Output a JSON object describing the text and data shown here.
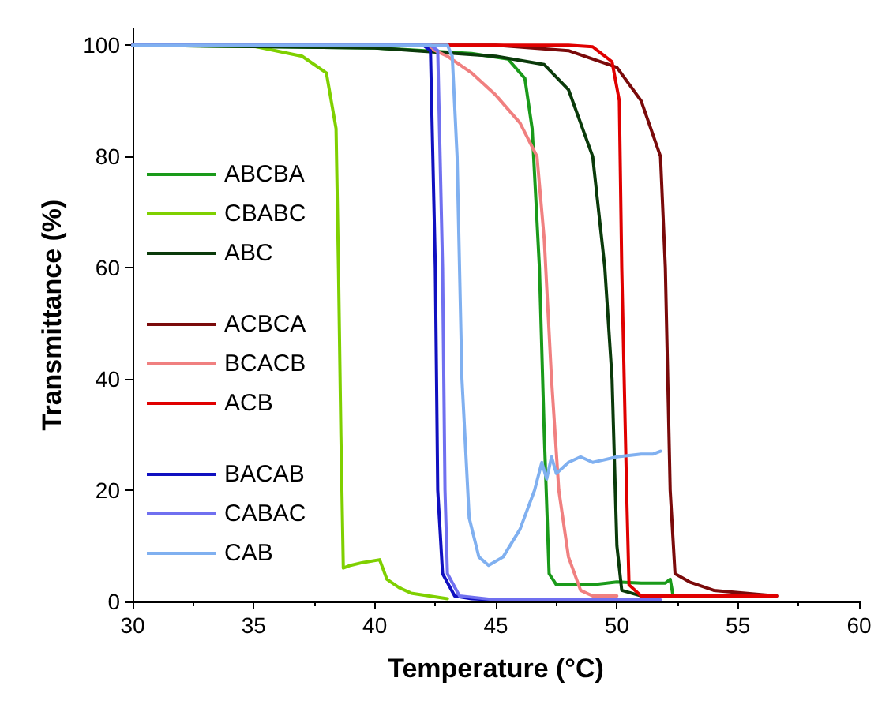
{
  "chart_data": {
    "type": "line",
    "xlabel": "Temperature (°C)",
    "ylabel": "Transmittance (%)",
    "xlim": [
      30,
      60
    ],
    "xticks": [
      30,
      35,
      40,
      45,
      50,
      55,
      60
    ],
    "ylim": [
      0,
      103
    ],
    "yticks": [
      0,
      20,
      40,
      60,
      80,
      100
    ],
    "grid": false,
    "legend": "left",
    "marker": "none",
    "line_style": "solid",
    "series": [
      {
        "name": "ABCBA",
        "color": "#1a9a1a",
        "x": [
          30,
          40,
          44,
          45.5,
          46.2,
          46.5,
          46.8,
          47,
          47.2,
          47.5,
          49,
          50,
          51,
          52,
          52.2,
          52.3
        ],
        "values": [
          100,
          99.5,
          98.5,
          97.5,
          94,
          85,
          60,
          30,
          5,
          3,
          3,
          3.5,
          3.3,
          3.3,
          4,
          1.5
        ]
      },
      {
        "name": "CBABC",
        "color": "#7fd000",
        "x": [
          30,
          35,
          37,
          38,
          38.4,
          38.5,
          38.6,
          38.7,
          39,
          39.5,
          40.2,
          40.5,
          41,
          41.5,
          43
        ],
        "values": [
          100,
          99.8,
          98,
          95,
          85,
          60,
          30,
          6,
          6.5,
          7,
          7.5,
          4,
          2.5,
          1.5,
          0.5
        ]
      },
      {
        "name": "ABC",
        "color": "#0a3a0a",
        "x": [
          30,
          40,
          45,
          47,
          48,
          49,
          49.5,
          49.8,
          50,
          50.2,
          51,
          52
        ],
        "values": [
          100,
          99.5,
          98,
          96.5,
          92,
          80,
          60,
          40,
          10,
          2,
          1,
          1
        ]
      },
      {
        "name": "ACBCA",
        "color": "#7a0a0a",
        "x": [
          30,
          45,
          48,
          50,
          51,
          51.8,
          52,
          52.2,
          52.4,
          53,
          54,
          56.6
        ],
        "values": [
          100,
          100,
          99,
          96,
          90,
          80,
          60,
          20,
          5,
          3.5,
          2,
          1
        ]
      },
      {
        "name": "BCACB",
        "color": "#f08080",
        "x": [
          30,
          42,
          43,
          44,
          45,
          46,
          46.7,
          47,
          47.3,
          47.6,
          48,
          48.5,
          49,
          50
        ],
        "values": [
          100,
          100,
          98,
          95,
          91,
          86,
          80,
          65,
          40,
          20,
          8,
          2,
          1,
          1
        ]
      },
      {
        "name": "ACB",
        "color": "#e00000",
        "x": [
          30,
          48,
          49,
          49.8,
          50.1,
          50.2,
          50.4,
          50.5,
          51,
          56.6
        ],
        "values": [
          100,
          100,
          99.7,
          97,
          90,
          60,
          20,
          3,
          1,
          1
        ]
      },
      {
        "name": "BACAB",
        "color": "#1010c0",
        "x": [
          30,
          42,
          42.3,
          42.5,
          42.6,
          42.8,
          43.3,
          44,
          45
        ],
        "values": [
          100,
          100,
          99,
          60,
          20,
          5,
          1,
          0.5,
          0.3
        ]
      },
      {
        "name": "CABAC",
        "color": "#7070f0",
        "x": [
          30,
          42.3,
          42.6,
          42.8,
          42.9,
          43,
          43.5,
          45,
          51.8
        ],
        "values": [
          100,
          100,
          99,
          60,
          20,
          5,
          1,
          0.3,
          0.3
        ]
      },
      {
        "name": "CAB",
        "color": "#80b0f0",
        "x": [
          30,
          43,
          43.2,
          43.4,
          43.6,
          43.9,
          44.3,
          44.7,
          45.3,
          46,
          46.6,
          46.9,
          47.1,
          47.3,
          47.5,
          48,
          48.5,
          49,
          50,
          51,
          51.5,
          51.8
        ],
        "values": [
          100,
          100,
          98,
          80,
          40,
          15,
          8,
          6.5,
          8,
          13,
          20,
          25,
          22,
          26,
          23,
          25,
          26,
          25,
          26,
          26.5,
          26.5,
          27
        ]
      }
    ]
  }
}
